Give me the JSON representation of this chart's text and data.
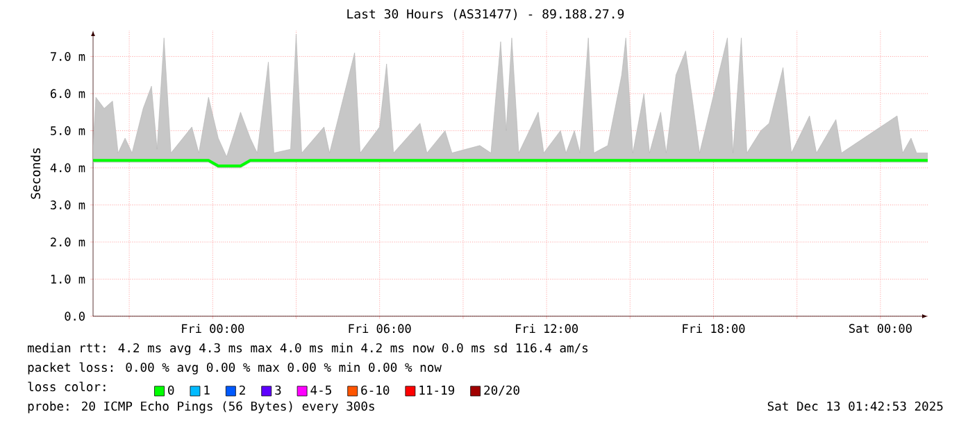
{
  "chart_data": {
    "type": "line",
    "title": "Last 30 Hours (AS31477) - 89.188.27.9",
    "ylabel": "Seconds",
    "xlim": [
      "2025-12-11T19:42",
      "2025-12-13T01:42"
    ],
    "ylim": [
      0,
      7.7
    ],
    "xticks": [
      {
        "value": "2025-12-11T21:00",
        "label": null
      },
      {
        "value": "2025-12-12T00:00",
        "label": "Fri 00:00"
      },
      {
        "value": "2025-12-12T03:00",
        "label": null
      },
      {
        "value": "2025-12-12T06:00",
        "label": "Fri 06:00"
      },
      {
        "value": "2025-12-12T09:00",
        "label": null
      },
      {
        "value": "2025-12-12T12:00",
        "label": "Fri 12:00"
      },
      {
        "value": "2025-12-12T15:00",
        "label": null
      },
      {
        "value": "2025-12-12T18:00",
        "label": "Fri 18:00"
      },
      {
        "value": "2025-12-12T21:00",
        "label": null
      },
      {
        "value": "2025-12-13T00:00",
        "label": "Sat 00:00"
      }
    ],
    "yticks": [
      {
        "value": 0,
        "label": "0.0"
      },
      {
        "value": 1,
        "label": "1.0 m"
      },
      {
        "value": 2,
        "label": "2.0 m"
      },
      {
        "value": 3,
        "label": "3.0 m"
      },
      {
        "value": 4,
        "label": "4.0 m"
      },
      {
        "value": 5,
        "label": "5.0 m"
      },
      {
        "value": 6,
        "label": "6.0 m"
      },
      {
        "value": 7,
        "label": "7.0 m"
      }
    ],
    "grid": true,
    "legend": "bottom",
    "legend_title": "loss color:",
    "series": [
      {
        "name": "0",
        "color": "#00ff00",
        "x": [
          "2025-12-11T19:42",
          "2025-12-11T19:48",
          "2025-12-11T20:06",
          "2025-12-11T20:24",
          "2025-12-11T20:36",
          "2025-12-11T20:51",
          "2025-12-11T21:06",
          "2025-12-11T21:30",
          "2025-12-11T21:48",
          "2025-12-11T22:00",
          "2025-12-11T22:15",
          "2025-12-11T22:30",
          "2025-12-11T23:15",
          "2025-12-11T23:30",
          "2025-12-11T23:51",
          "2025-12-12T00:12",
          "2025-12-12T00:30",
          "2025-12-12T00:48",
          "2025-12-12T01:00",
          "2025-12-12T01:21",
          "2025-12-12T01:36",
          "2025-12-12T02:00",
          "2025-12-12T02:12",
          "2025-12-12T02:48",
          "2025-12-12T03:00",
          "2025-12-12T03:12",
          "2025-12-12T04:00",
          "2025-12-12T04:12",
          "2025-12-12T05:06",
          "2025-12-12T05:18",
          "2025-12-12T06:00",
          "2025-12-12T06:15",
          "2025-12-12T06:30",
          "2025-12-12T07:27",
          "2025-12-12T07:42",
          "2025-12-12T08:21",
          "2025-12-12T08:36",
          "2025-12-12T09:36",
          "2025-12-12T10:00",
          "2025-12-12T10:21",
          "2025-12-12T10:33",
          "2025-12-12T10:45",
          "2025-12-12T11:00",
          "2025-12-12T11:42",
          "2025-12-12T11:54",
          "2025-12-12T12:30",
          "2025-12-12T12:42",
          "2025-12-12T13:00",
          "2025-12-12T13:12",
          "2025-12-12T13:30",
          "2025-12-12T13:42",
          "2025-12-12T14:12",
          "2025-12-12T14:42",
          "2025-12-12T14:51",
          "2025-12-12T15:06",
          "2025-12-12T15:30",
          "2025-12-12T15:42",
          "2025-12-12T16:06",
          "2025-12-12T16:18",
          "2025-12-12T16:39",
          "2025-12-12T17:00",
          "2025-12-12T17:15",
          "2025-12-12T17:30",
          "2025-12-12T18:30",
          "2025-12-12T18:42",
          "2025-12-12T19:00",
          "2025-12-12T19:12",
          "2025-12-12T19:42",
          "2025-12-12T20:00",
          "2025-12-12T20:30",
          "2025-12-12T20:48",
          "2025-12-12T21:27",
          "2025-12-12T21:42",
          "2025-12-12T22:24",
          "2025-12-12T22:36",
          "2025-12-13T00:36",
          "2025-12-13T00:48",
          "2025-12-13T01:06",
          "2025-12-13T01:18",
          "2025-12-13T01:42"
        ],
        "values": [
          4.2,
          4.2,
          4.2,
          4.2,
          4.2,
          4.2,
          4.2,
          4.2,
          4.2,
          4.2,
          4.2,
          4.2,
          4.2,
          4.2,
          4.2,
          4.05,
          4.05,
          4.05,
          4.05,
          4.2,
          4.2,
          4.2,
          4.2,
          4.2,
          4.2,
          4.2,
          4.2,
          4.2,
          4.2,
          4.2,
          4.2,
          4.2,
          4.2,
          4.2,
          4.2,
          4.2,
          4.2,
          4.2,
          4.2,
          4.2,
          4.2,
          4.2,
          4.2,
          4.2,
          4.2,
          4.2,
          4.2,
          4.2,
          4.2,
          4.2,
          4.2,
          4.2,
          4.2,
          4.2,
          4.2,
          4.2,
          4.2,
          4.2,
          4.2,
          4.2,
          4.2,
          4.2,
          4.2,
          4.2,
          4.2,
          4.2,
          4.2,
          4.2,
          4.2,
          4.2,
          4.2,
          4.2,
          4.2,
          4.2,
          4.2,
          4.2,
          4.2,
          4.2,
          4.2,
          4.2
        ],
        "lower": [
          4.15,
          4.15,
          4.15,
          4.15,
          4.15,
          4.15,
          4.15,
          4.15,
          4.15,
          4.15,
          4.15,
          4.15,
          4.15,
          4.15,
          4.15,
          4.0,
          4.0,
          4.0,
          4.0,
          4.15,
          4.15,
          4.15,
          4.15,
          4.15,
          4.15,
          4.15,
          4.15,
          4.15,
          4.15,
          4.15,
          4.15,
          4.15,
          4.15,
          4.15,
          4.15,
          4.15,
          4.15,
          4.15,
          4.15,
          4.15,
          4.15,
          4.15,
          4.15,
          4.15,
          4.15,
          4.15,
          4.15,
          4.15,
          4.15,
          4.15,
          4.15,
          4.15,
          4.15,
          4.15,
          4.15,
          4.15,
          4.15,
          4.15,
          4.15,
          4.15,
          4.15,
          4.15,
          4.15,
          4.15,
          4.15,
          4.15,
          4.15,
          4.15,
          4.15,
          4.15,
          4.15,
          4.15,
          4.15,
          4.15,
          4.15,
          4.15,
          4.15,
          4.15,
          4.15,
          4.15
        ],
        "upper": [
          4.6,
          5.9,
          5.6,
          5.8,
          4.4,
          4.8,
          4.4,
          5.6,
          6.2,
          4.5,
          7.5,
          4.4,
          5.1,
          4.4,
          5.9,
          4.8,
          4.3,
          5.0,
          5.5,
          4.8,
          4.4,
          6.85,
          4.4,
          4.5,
          7.6,
          4.4,
          5.1,
          4.4,
          7.1,
          4.4,
          5.1,
          6.8,
          4.4,
          5.2,
          4.4,
          5.0,
          4.4,
          4.6,
          4.4,
          7.4,
          5.0,
          7.5,
          4.4,
          5.5,
          4.4,
          5.0,
          4.4,
          5.0,
          4.4,
          7.5,
          4.4,
          4.6,
          6.5,
          7.5,
          4.4,
          6.0,
          4.4,
          5.5,
          4.4,
          6.5,
          7.15,
          5.8,
          4.4,
          7.5,
          4.4,
          7.5,
          4.4,
          5.0,
          5.2,
          6.7,
          4.4,
          5.4,
          4.4,
          5.3,
          4.4,
          5.4,
          4.4,
          4.8,
          4.4,
          4.4
        ]
      },
      {
        "name": "1",
        "color": "#00bbff",
        "values": [
          null
        ]
      },
      {
        "name": "2",
        "color": "#0059ff",
        "values": [
          null
        ]
      },
      {
        "name": "3",
        "color": "#5e00ff",
        "values": [
          null
        ]
      },
      {
        "name": "4-5",
        "color": "#ff00ff",
        "values": [
          null
        ]
      },
      {
        "name": "6-10",
        "color": "#ff5500",
        "values": [
          null
        ]
      },
      {
        "name": "11-19",
        "color": "#ff0000",
        "values": [
          null
        ]
      },
      {
        "name": "20/20",
        "color": "#a10000",
        "values": [
          null
        ]
      }
    ],
    "annotations": [
      "median rtt: 4.2 ms avg 4.3 ms max 4.0 ms min 4.2 ms now 0.0 ms sd 116.4 am/s",
      "packet loss: 0.00 % avg 0.00 % max 0.00 % min 0.00 % now",
      "probe: 20 ICMP Echo Pings (56 Bytes) every 300s",
      "Sat Dec 13 01:42:53 2025"
    ]
  }
}
